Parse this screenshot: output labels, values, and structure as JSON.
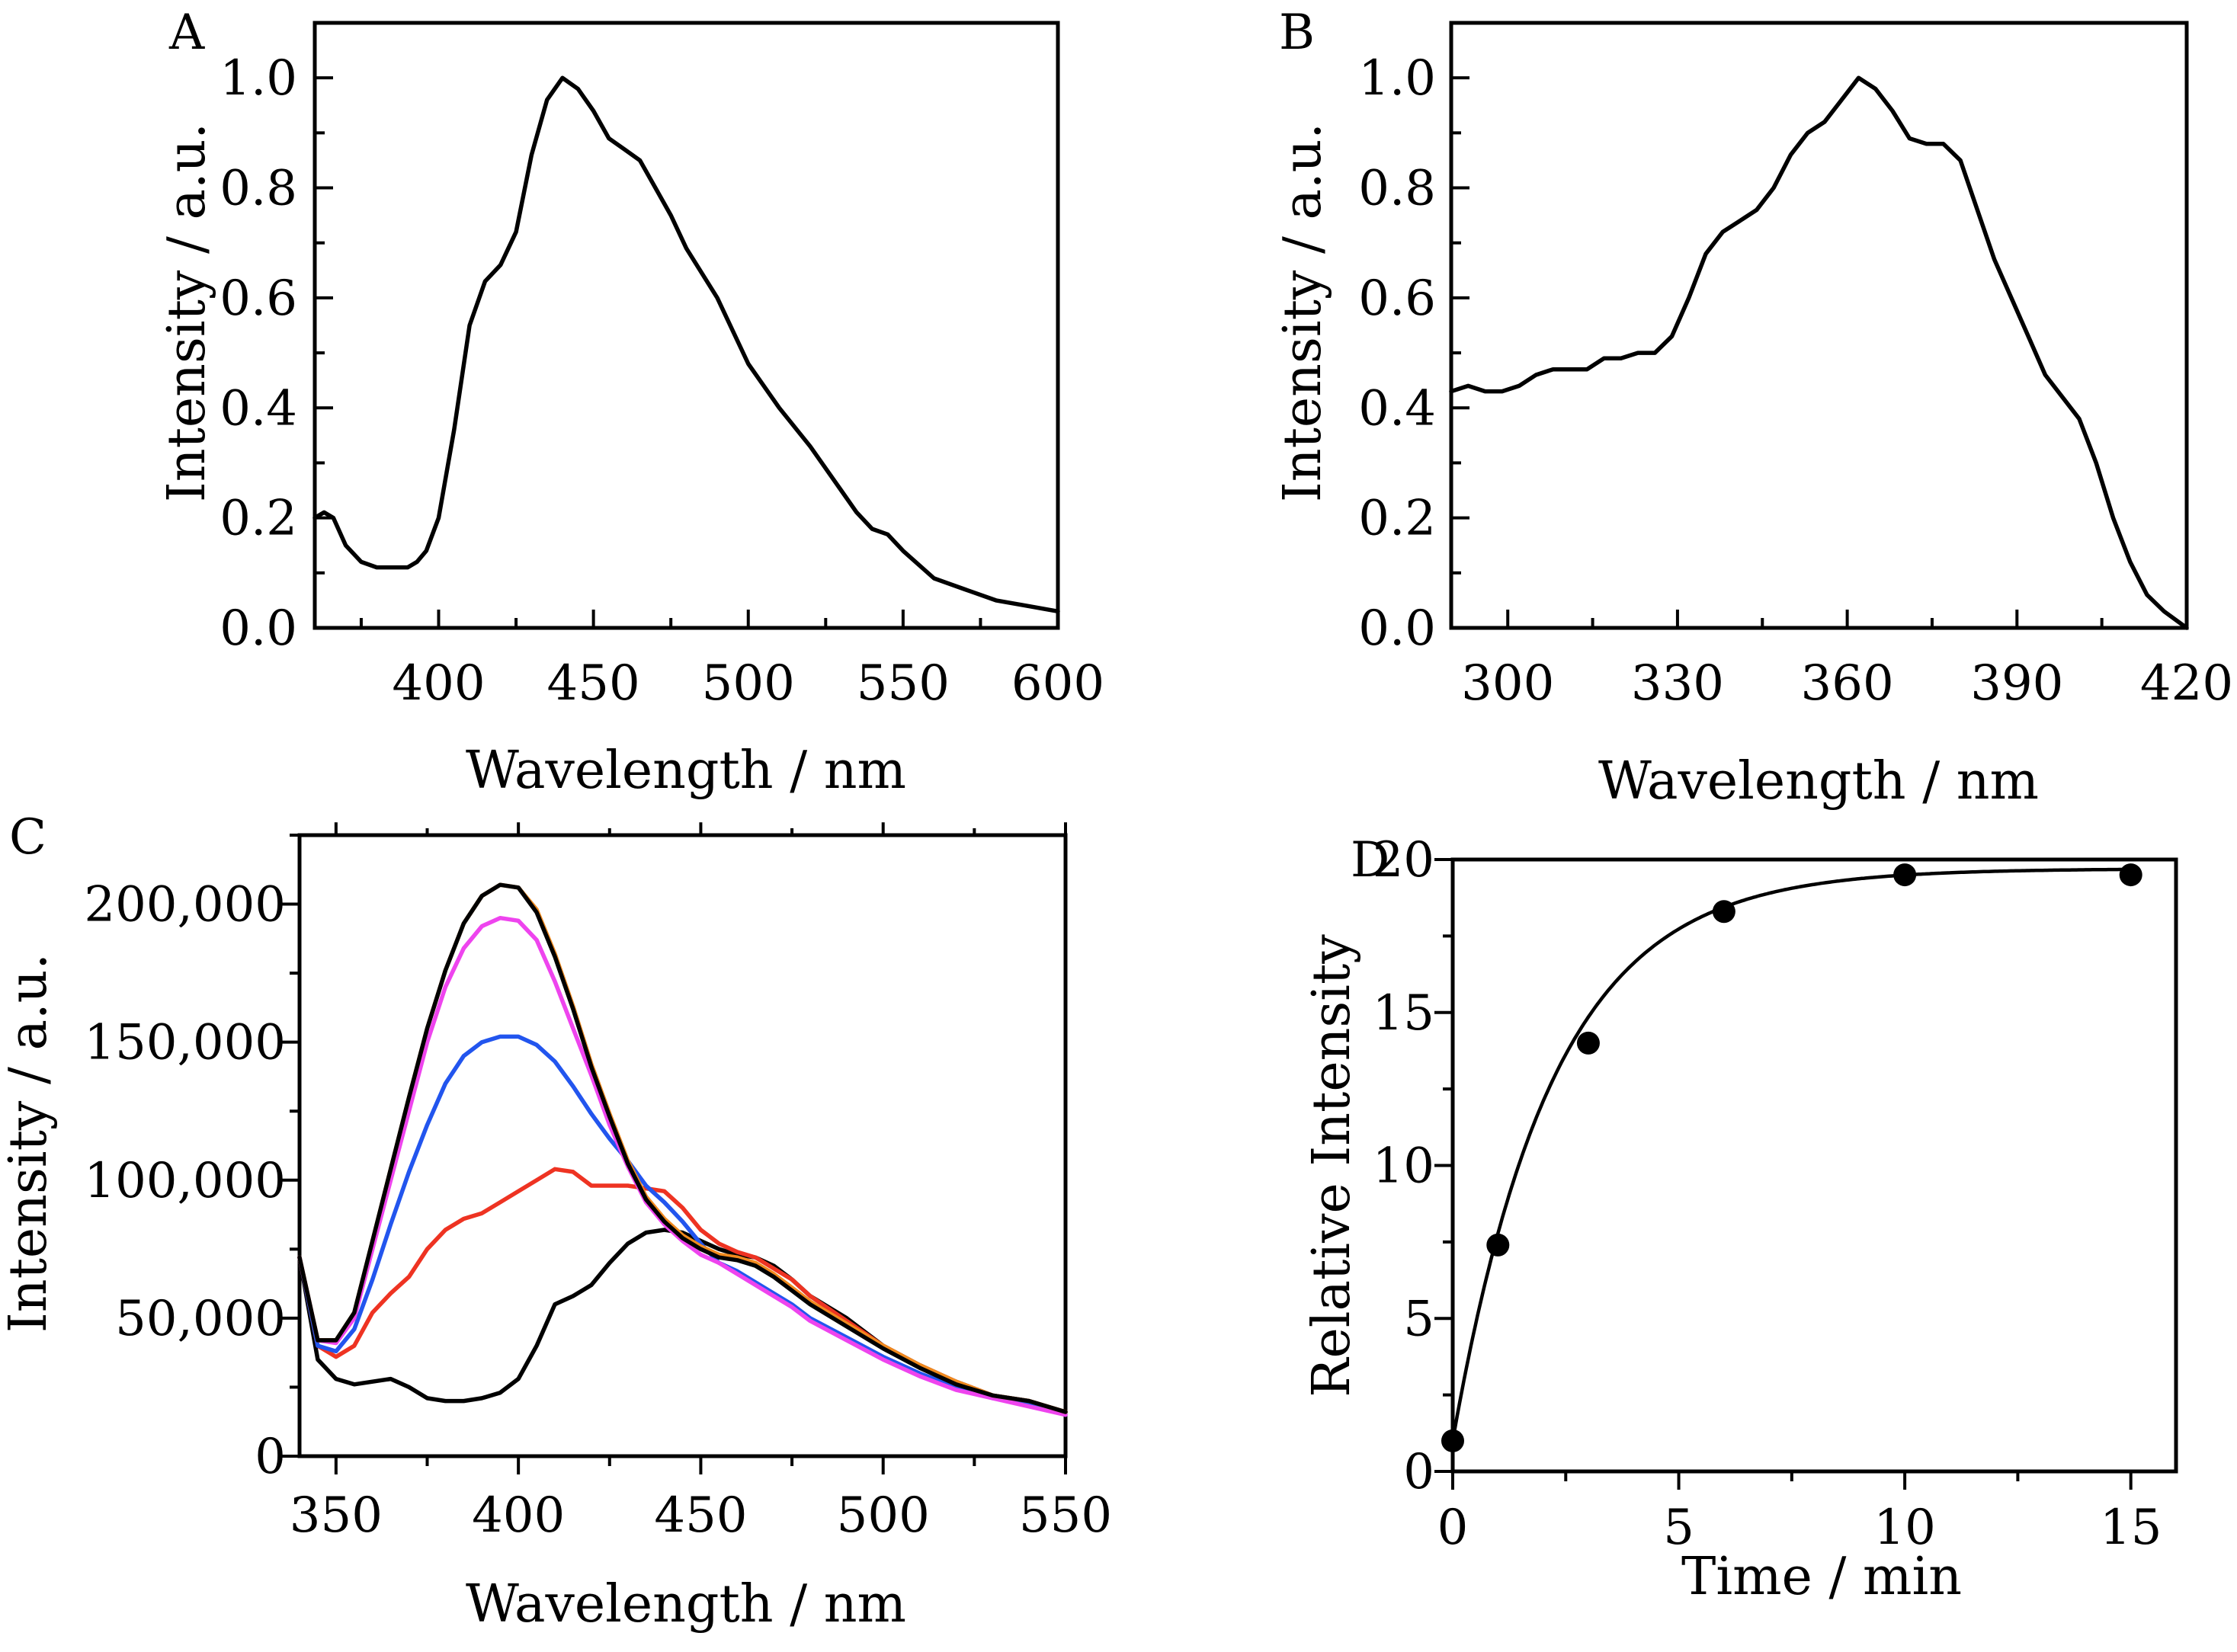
{
  "chart_data": [
    {
      "panel": "A",
      "type": "line",
      "title": "",
      "xlabel": "Wavelength / nm",
      "ylabel": "Intensity / a.u.",
      "xlim": [
        360,
        600
      ],
      "ylim": [
        0,
        1.1
      ],
      "xticks": [
        400,
        450,
        500,
        550,
        600
      ],
      "xticklabels": [
        "400",
        "450",
        "500",
        "550",
        "600"
      ],
      "yticks": [
        0,
        0.2,
        0.4,
        0.6,
        0.8,
        1.0
      ],
      "yticklabels": [
        "0.0",
        "0.2",
        "0.4",
        "0.6",
        "0.8",
        "1.0"
      ],
      "series": [
        {
          "name": "A spectrum",
          "color": "#000000",
          "x": [
            360,
            363,
            366,
            370,
            375,
            380,
            385,
            390,
            393,
            396,
            400,
            405,
            410,
            415,
            420,
            425,
            430,
            435,
            440,
            445,
            450,
            455,
            460,
            465,
            470,
            475,
            480,
            490,
            500,
            510,
            520,
            530,
            535,
            540,
            545,
            550,
            560,
            570,
            580,
            590,
            600
          ],
          "y": [
            0.2,
            0.21,
            0.2,
            0.15,
            0.12,
            0.11,
            0.11,
            0.11,
            0.12,
            0.14,
            0.2,
            0.36,
            0.55,
            0.63,
            0.66,
            0.72,
            0.86,
            0.96,
            1.0,
            0.98,
            0.94,
            0.89,
            0.87,
            0.85,
            0.8,
            0.75,
            0.69,
            0.6,
            0.48,
            0.4,
            0.33,
            0.25,
            0.21,
            0.18,
            0.17,
            0.14,
            0.09,
            0.07,
            0.05,
            0.04,
            0.03
          ]
        }
      ]
    },
    {
      "panel": "B",
      "type": "line",
      "title": "",
      "xlabel": "Wavelength / nm",
      "ylabel": "Intensity / a.u.",
      "xlim": [
        290,
        420
      ],
      "ylim": [
        0,
        1.1
      ],
      "xticks": [
        300,
        330,
        360,
        390,
        420
      ],
      "xticklabels": [
        "300",
        "330",
        "360",
        "390",
        "420"
      ],
      "yticks": [
        0,
        0.2,
        0.4,
        0.6,
        0.8,
        1.0
      ],
      "yticklabels": [
        "0.0",
        "0.2",
        "0.4",
        "0.6",
        "0.8",
        "1.0"
      ],
      "series": [
        {
          "name": "B spectrum",
          "color": "#000000",
          "x": [
            290,
            293,
            296,
            299,
            302,
            305,
            308,
            311,
            314,
            317,
            320,
            323,
            326,
            329,
            332,
            335,
            338,
            341,
            344,
            347,
            350,
            353,
            356,
            359,
            362,
            365,
            368,
            371,
            374,
            377,
            380,
            383,
            386,
            389,
            392,
            395,
            398,
            401,
            404,
            407,
            410,
            413,
            416,
            420
          ],
          "y": [
            0.43,
            0.44,
            0.43,
            0.43,
            0.44,
            0.46,
            0.47,
            0.47,
            0.47,
            0.49,
            0.49,
            0.5,
            0.5,
            0.53,
            0.6,
            0.68,
            0.72,
            0.74,
            0.76,
            0.8,
            0.86,
            0.9,
            0.92,
            0.96,
            1.0,
            0.98,
            0.94,
            0.89,
            0.88,
            0.88,
            0.85,
            0.76,
            0.67,
            0.6,
            0.53,
            0.46,
            0.42,
            0.38,
            0.3,
            0.2,
            0.12,
            0.06,
            0.03,
            0.0
          ]
        }
      ]
    },
    {
      "panel": "C",
      "type": "line",
      "title": "",
      "xlabel": "Wavelength / nm",
      "ylabel": "Intensity / a.u.",
      "xlim": [
        340,
        550
      ],
      "ylim": [
        0,
        225000
      ],
      "xticks": [
        350,
        400,
        450,
        500,
        550
      ],
      "xticklabels": [
        "350",
        "400",
        "450",
        "500",
        "550"
      ],
      "yticks": [
        0,
        50000,
        100000,
        150000,
        200000
      ],
      "yticklabels": [
        "0",
        "50,000",
        "100,000",
        "150,000",
        "200,000"
      ],
      "x": [
        340,
        345,
        350,
        355,
        360,
        365,
        370,
        375,
        380,
        385,
        390,
        395,
        400,
        405,
        410,
        415,
        420,
        425,
        430,
        435,
        440,
        445,
        450,
        455,
        460,
        465,
        470,
        475,
        480,
        490,
        500,
        510,
        520,
        530,
        540,
        550
      ],
      "series": [
        {
          "name": "trace 1 (black, lowest)",
          "color": "#000000",
          "values": [
            72000,
            35000,
            28000,
            26000,
            27000,
            28000,
            25000,
            21000,
            20000,
            20000,
            21000,
            23000,
            28000,
            40000,
            55000,
            58000,
            62000,
            70000,
            77000,
            81000,
            82000,
            81000,
            78000,
            75000,
            73000,
            72000,
            69000,
            64000,
            58000,
            50000,
            40000,
            33000,
            27000,
            22000,
            20000,
            16000
          ]
        },
        {
          "name": "trace 2 (red)",
          "color": "#ee3322",
          "values": [
            72000,
            40000,
            36000,
            40000,
            52000,
            59000,
            65000,
            75000,
            82000,
            86000,
            88000,
            92000,
            96000,
            100000,
            104000,
            103000,
            98000,
            98000,
            98000,
            97000,
            96000,
            90000,
            82000,
            77000,
            74000,
            72000,
            68000,
            64000,
            58000,
            49000,
            40000,
            33000,
            27000,
            22000,
            20000,
            16000
          ]
        },
        {
          "name": "trace 3 (blue)",
          "color": "#2255ee",
          "values": [
            72000,
            40000,
            38000,
            46000,
            64000,
            84000,
            103000,
            120000,
            135000,
            145000,
            150000,
            152000,
            152000,
            149000,
            143000,
            134000,
            124000,
            115000,
            107000,
            98000,
            92000,
            85000,
            77000,
            70000,
            67000,
            63000,
            59000,
            55000,
            50000,
            43000,
            36000,
            30000,
            25000,
            21000,
            19000,
            15000
          ]
        },
        {
          "name": "trace 4 (magenta)",
          "color": "#ee44ee",
          "values": [
            72000,
            42000,
            41000,
            50000,
            75000,
            100000,
            125000,
            150000,
            170000,
            184000,
            192000,
            195000,
            194000,
            187000,
            172000,
            155000,
            138000,
            120000,
            105000,
            92000,
            84000,
            78000,
            73000,
            70000,
            66000,
            62000,
            58000,
            54000,
            49000,
            42000,
            35000,
            29000,
            24000,
            21000,
            18000,
            15000
          ]
        },
        {
          "name": "trace 5 (orange)",
          "color": "#f08a1e",
          "values": [
            72000,
            42000,
            42000,
            52000,
            78000,
            104000,
            130000,
            155000,
            176000,
            193000,
            203000,
            207000,
            206000,
            198000,
            182000,
            163000,
            142000,
            124000,
            107000,
            94000,
            86000,
            80000,
            76000,
            73000,
            72000,
            70000,
            66000,
            61000,
            56000,
            48000,
            40000,
            33000,
            27000,
            22000,
            20000,
            16000
          ]
        },
        {
          "name": "trace 6 (black, highest)",
          "color": "#000000",
          "values": [
            72000,
            42000,
            42000,
            52000,
            78000,
            104000,
            130000,
            155000,
            176000,
            193000,
            203000,
            207000,
            206000,
            197000,
            181000,
            162000,
            141000,
            123000,
            106000,
            93000,
            85000,
            79000,
            75000,
            72000,
            71000,
            69000,
            65000,
            60000,
            55000,
            47000,
            39000,
            32000,
            26000,
            22000,
            20000,
            16000
          ]
        }
      ]
    },
    {
      "panel": "D",
      "type": "scatter",
      "title": "",
      "xlabel": "Time / min",
      "ylabel": "Relative Intensity",
      "xlim": [
        0,
        16
      ],
      "ylim": [
        0,
        20
      ],
      "xticks": [
        0,
        5,
        10,
        15
      ],
      "xticklabels": [
        "0",
        "5",
        "10",
        "15"
      ],
      "yticks": [
        0,
        5,
        10,
        15,
        20
      ],
      "yticklabels": [
        "0",
        "5",
        "10",
        "15",
        "20"
      ],
      "points": {
        "x": [
          0,
          1,
          3,
          6,
          10,
          15
        ],
        "y": [
          1.0,
          7.4,
          14.0,
          18.3,
          19.5,
          19.5
        ]
      },
      "fit": {
        "model": "y = 19.7 - 18.7 * exp(-0.45 * x)",
        "y_max": 19.7,
        "amplitude": 18.7,
        "rate": 0.45,
        "color": "#000000"
      }
    }
  ]
}
